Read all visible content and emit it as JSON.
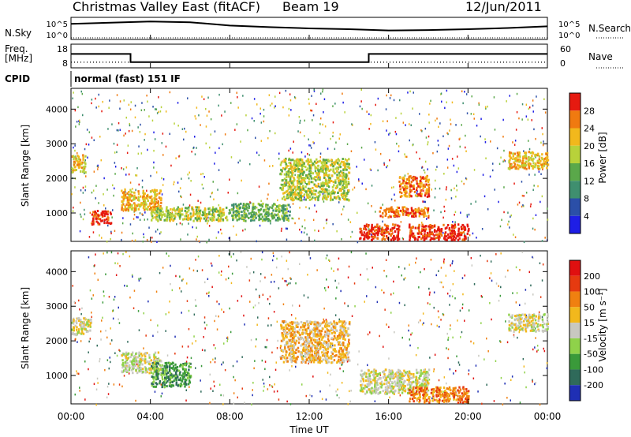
{
  "header": {
    "station": "Christmas Valley East (fitACF)",
    "beam": "Beam 19",
    "date": "12/Jun/2011"
  },
  "side_labels": {
    "nsky": "N.Sky",
    "freq": "Freq.",
    "freq_unit": "[MHz]",
    "cpid": "CPID",
    "nsearch": "N.Search",
    "nave": "Nave"
  },
  "top_axes": {
    "noise_ticks": [
      "10^5",
      "10^0"
    ],
    "noise_right_ticks": [
      "10^5",
      "10^0"
    ],
    "freq_ticks": [
      "18",
      "8"
    ],
    "nave_ticks": [
      "60",
      "0"
    ],
    "cpid_text": "normal (fast) 151 IF"
  },
  "x_axis": {
    "label": "Time UT",
    "ticks": [
      "00:00",
      "04:00",
      "08:00",
      "12:00",
      "16:00",
      "20:00",
      "00:00"
    ]
  },
  "y_axis": {
    "label": "Slant Range [km]",
    "ticks": [
      "1000",
      "2000",
      "3000",
      "4000"
    ]
  },
  "power_colorbar": {
    "label": "Power [dB]",
    "ticks": [
      "4",
      "8",
      "12",
      "16",
      "20",
      "24",
      "28"
    ],
    "colors": [
      "#1e1ee6",
      "#2b4fa8",
      "#3f8f6f",
      "#5aa84a",
      "#b8d23a",
      "#f2b81c",
      "#f07a10",
      "#e61a10"
    ]
  },
  "velocity_colorbar": {
    "label": "Velocity [m s⁻¹]",
    "ticks": [
      "200",
      "100",
      "50",
      "15",
      "-15",
      "-50",
      "-100",
      "-200"
    ],
    "colors": [
      "#1f2fb4",
      "#2f6a5a",
      "#3a9a3a",
      "#8fd24a",
      "#c8c8c0",
      "#f2b81c",
      "#f08010",
      "#e63a10",
      "#e01010"
    ]
  },
  "chart_data": [
    {
      "type": "line",
      "title": "N.Sky / N.Search",
      "x": [
        0,
        2,
        4,
        6,
        8,
        10,
        12,
        14,
        16,
        18,
        20,
        22,
        24
      ],
      "series": [
        {
          "name": "N.Sky",
          "values": [
            3.6,
            3.9,
            4.2,
            4.0,
            3.2,
            2.8,
            2.5,
            2.3,
            2.0,
            2.1,
            2.3,
            2.6,
            3.0
          ]
        },
        {
          "name": "N.Search",
          "values": [
            0.2,
            0.2,
            0.2,
            0.2,
            0.2,
            0.2,
            0.2,
            0.2,
            0.2,
            0.2,
            0.2,
            0.2,
            0.2
          ]
        }
      ]
    },
    {
      "type": "line",
      "title": "Freq. / Nave",
      "x": [
        0,
        3,
        3,
        15,
        15,
        24
      ],
      "series": [
        {
          "name": "Freq.",
          "values": [
            14,
            14,
            10,
            10,
            14,
            14
          ]
        },
        {
          "name": "Nave",
          "values": [
            12,
            12,
            12,
            12,
            12,
            12
          ]
        }
      ]
    },
    {
      "type": "heatmap",
      "title": "Power [dB]",
      "xlabel": "Time UT",
      "ylabel": "Slant Range [km]",
      "xlim": [
        0,
        24
      ],
      "ylim": [
        180,
        4600
      ],
      "blobs": [
        {
          "t0": 0.0,
          "t1": 0.7,
          "r0": 2200,
          "r1": 2700,
          "level": 5
        },
        {
          "t0": 1.0,
          "t1": 2.0,
          "r0": 700,
          "r1": 1100,
          "level": 7
        },
        {
          "t0": 2.5,
          "t1": 4.5,
          "r0": 1100,
          "r1": 1700,
          "level": 5
        },
        {
          "t0": 4.0,
          "t1": 8.0,
          "r0": 800,
          "r1": 1200,
          "level": 4
        },
        {
          "t0": 8.0,
          "t1": 11.0,
          "r0": 800,
          "r1": 1300,
          "level": 3
        },
        {
          "t0": 10.5,
          "t1": 14.0,
          "r0": 1400,
          "r1": 2600,
          "level": 4
        },
        {
          "t0": 14.5,
          "t1": 16.5,
          "r0": 250,
          "r1": 700,
          "level": 7
        },
        {
          "t0": 15.5,
          "t1": 18.0,
          "r0": 900,
          "r1": 1200,
          "level": 6
        },
        {
          "t0": 16.5,
          "t1": 18.0,
          "r0": 1500,
          "r1": 2100,
          "level": 6
        },
        {
          "t0": 17.0,
          "t1": 20.0,
          "r0": 250,
          "r1": 700,
          "level": 7
        },
        {
          "t0": 22.0,
          "t1": 24.0,
          "r0": 2300,
          "r1": 2800,
          "level": 5
        }
      ]
    },
    {
      "type": "heatmap",
      "title": "Velocity [m s⁻¹]",
      "xlabel": "Time UT",
      "ylabel": "Slant Range [km]",
      "xlim": [
        0,
        24
      ],
      "ylim": [
        180,
        4600
      ],
      "blobs": [
        {
          "t0": 0.0,
          "t1": 1.0,
          "r0": 2200,
          "r1": 2700,
          "level": 4
        },
        {
          "t0": 2.5,
          "t1": 4.5,
          "r0": 1100,
          "r1": 1700,
          "level": 4
        },
        {
          "t0": 4.0,
          "t1": 6.0,
          "r0": 700,
          "r1": 1400,
          "level": 2
        },
        {
          "t0": 10.5,
          "t1": 14.0,
          "r0": 1400,
          "r1": 2600,
          "level": 5
        },
        {
          "t0": 14.5,
          "t1": 18.0,
          "r0": 500,
          "r1": 1200,
          "level": 4
        },
        {
          "t0": 17.0,
          "t1": 20.0,
          "r0": 250,
          "r1": 700,
          "level": 6
        },
        {
          "t0": 22.0,
          "t1": 24.0,
          "r0": 2300,
          "r1": 2800,
          "level": 4
        }
      ]
    }
  ]
}
